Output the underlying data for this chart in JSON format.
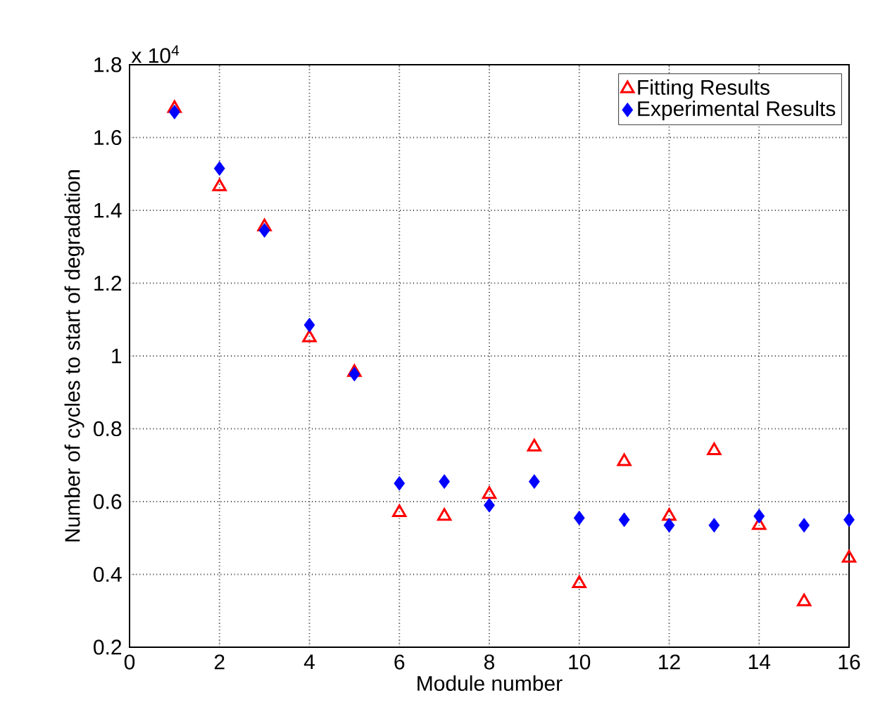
{
  "chart_data": {
    "type": "scatter",
    "xlabel": "Module number",
    "ylabel": "Number of cycles to start of degradation",
    "annotations": [
      "x 10$^{4}$"
    ],
    "x": [
      1,
      2,
      3,
      4,
      5,
      6,
      7,
      8,
      9,
      10,
      11,
      12,
      13,
      14,
      15,
      16
    ],
    "series": [
      {
        "name": "Fitting Results",
        "color": "#ff0000",
        "marker": "triangle",
        "values": [
          1.68,
          1.465,
          1.355,
          1.05,
          0.955,
          0.57,
          0.56,
          0.62,
          0.75,
          0.375,
          0.71,
          0.56,
          0.74,
          0.535,
          0.325,
          0.445
        ]
      },
      {
        "name": "Experimental Results",
        "color": "#0000ff",
        "marker": "diamond",
        "values": [
          1.67,
          1.515,
          1.345,
          1.085,
          0.95,
          0.65,
          0.655,
          0.59,
          0.655,
          0.555,
          0.55,
          0.535,
          0.535,
          0.56,
          0.535,
          0.55
        ]
      }
    ],
    "xlim": [
      0,
      16
    ],
    "xticks": [
      0,
      2,
      4,
      6,
      8,
      10,
      12,
      14,
      16
    ],
    "ylim": [
      0.2,
      1.8
    ],
    "yticks": [
      0.2,
      0.4,
      0.6,
      0.8,
      1,
      1.2,
      1.4,
      1.6,
      1.8
    ],
    "grid": true,
    "legend": "top right"
  }
}
